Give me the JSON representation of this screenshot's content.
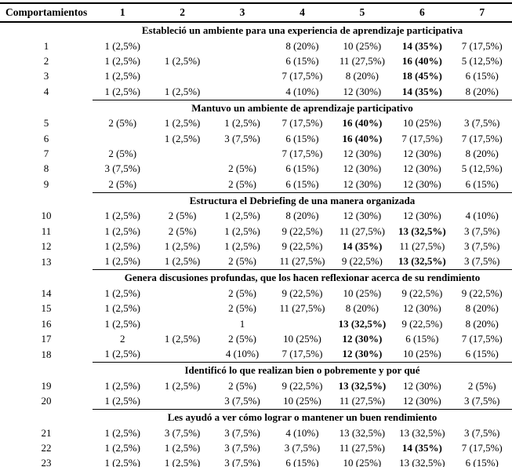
{
  "colors": {
    "text": "#000000",
    "background": "#ffffff",
    "rule": "#000000"
  },
  "table": {
    "header": {
      "label": "Comportamientos",
      "columns": [
        "1",
        "2",
        "3",
        "4",
        "5",
        "6",
        "7"
      ]
    },
    "sections": [
      {
        "title": "Estableció un ambiente para una experiencia de aprendizaje participativa",
        "rows": [
          {
            "id": "1",
            "cells": [
              {
                "t": "1 (2,5%)"
              },
              {
                "t": ""
              },
              {
                "t": ""
              },
              {
                "t": "8 (20%)"
              },
              {
                "t": "10 (25%)"
              },
              {
                "t": "14 (35%)",
                "b": true
              },
              {
                "t": "7 (17,5%)"
              }
            ]
          },
          {
            "id": "2",
            "cells": [
              {
                "t": "1 (2,5%)"
              },
              {
                "t": "1 (2,5%)"
              },
              {
                "t": ""
              },
              {
                "t": "6 (15%)"
              },
              {
                "t": "11 (27,5%)"
              },
              {
                "t": "16 (40%)",
                "b": true
              },
              {
                "t": "5 (12,5%)"
              }
            ]
          },
          {
            "id": "3",
            "cells": [
              {
                "t": "1 (2,5%)"
              },
              {
                "t": ""
              },
              {
                "t": ""
              },
              {
                "t": "7 (17,5%)"
              },
              {
                "t": "8 (20%)"
              },
              {
                "t": "18 (45%)",
                "b": true
              },
              {
                "t": "6 (15%)"
              }
            ]
          },
          {
            "id": "4",
            "cells": [
              {
                "t": "1 (2,5%)"
              },
              {
                "t": "1 (2,5%)"
              },
              {
                "t": ""
              },
              {
                "t": "4 (10%)"
              },
              {
                "t": "12 (30%)"
              },
              {
                "t": "14 (35%)",
                "b": true
              },
              {
                "t": "8 (20%)"
              }
            ]
          }
        ]
      },
      {
        "title": "Mantuvo un ambiente de aprendizaje participativo",
        "rows": [
          {
            "id": "5",
            "cells": [
              {
                "t": "2 (5%)"
              },
              {
                "t": "1 (2,5%)"
              },
              {
                "t": "1 (2,5%)"
              },
              {
                "t": "7 (17,5%)"
              },
              {
                "t": "16 (40%)",
                "b": true
              },
              {
                "t": "10 (25%)"
              },
              {
                "t": "3 (7,5%)"
              }
            ]
          },
          {
            "id": "6",
            "cells": [
              {
                "t": ""
              },
              {
                "t": "1 (2,5%)"
              },
              {
                "t": "3 (7,5%)"
              },
              {
                "t": "6 (15%)"
              },
              {
                "t": "16 (40%)",
                "b": true
              },
              {
                "t": "7 (17,5%)"
              },
              {
                "t": "7 (17,5%)"
              }
            ]
          },
          {
            "id": "7",
            "cells": [
              {
                "t": "2 (5%)"
              },
              {
                "t": ""
              },
              {
                "t": ""
              },
              {
                "t": "7 (17,5%)"
              },
              {
                "t": "12 (30%)"
              },
              {
                "t": "12 (30%)"
              },
              {
                "t": "8 (20%)"
              }
            ]
          },
          {
            "id": "8",
            "cells": [
              {
                "t": "3 (7,5%)"
              },
              {
                "t": ""
              },
              {
                "t": "2 (5%)"
              },
              {
                "t": "6 (15%)"
              },
              {
                "t": "12 (30%)"
              },
              {
                "t": "12 (30%)"
              },
              {
                "t": "5 (12,5%)"
              }
            ]
          },
          {
            "id": "9",
            "cells": [
              {
                "t": "2 (5%)"
              },
              {
                "t": ""
              },
              {
                "t": "2 (5%)"
              },
              {
                "t": "6 (15%)"
              },
              {
                "t": "12 (30%)"
              },
              {
                "t": "12 (30%)"
              },
              {
                "t": "6 (15%)"
              }
            ]
          }
        ]
      },
      {
        "title": "Estructura el Debriefing de una manera organizada",
        "rows": [
          {
            "id": "10",
            "cells": [
              {
                "t": "1 (2,5%)"
              },
              {
                "t": "2 (5%)"
              },
              {
                "t": "1 (2,5%)"
              },
              {
                "t": "8 (20%)"
              },
              {
                "t": "12 (30%)"
              },
              {
                "t": "12 (30%)"
              },
              {
                "t": "4 (10%)"
              }
            ]
          },
          {
            "id": "11",
            "cells": [
              {
                "t": "1 (2,5%)"
              },
              {
                "t": "2 (5%)"
              },
              {
                "t": "1 (2,5%)"
              },
              {
                "t": "9 (22,5%)"
              },
              {
                "t": "11 (27,5%)"
              },
              {
                "t": "13 (32,5%)",
                "b": true
              },
              {
                "t": "3 (7,5%)"
              }
            ]
          },
          {
            "id": "12",
            "cells": [
              {
                "t": "1 (2,5%)"
              },
              {
                "t": "1 (2,5%)"
              },
              {
                "t": "1 (2,5%)"
              },
              {
                "t": "9 (22,5%)"
              },
              {
                "t": "14 (35%)",
                "b": true
              },
              {
                "t": "11 (27,5%)"
              },
              {
                "t": "3 (7,5%)"
              }
            ]
          },
          {
            "id": "13",
            "cells": [
              {
                "t": "1 (2,5%)"
              },
              {
                "t": "1 (2,5%)"
              },
              {
                "t": "2 (5%)"
              },
              {
                "t": "11 (27,5%)"
              },
              {
                "t": "9 (22,5%)"
              },
              {
                "t": "13 (32,5%)",
                "b": true
              },
              {
                "t": "3 (7,5%)"
              }
            ]
          }
        ]
      },
      {
        "title": "Genera discusiones profundas, que los hacen reflexionar acerca de su rendimiento",
        "rows": [
          {
            "id": "14",
            "cells": [
              {
                "t": "1 (2,5%)"
              },
              {
                "t": ""
              },
              {
                "t": "2 (5%)"
              },
              {
                "t": "9 (22,5%)"
              },
              {
                "t": "10 (25%)"
              },
              {
                "t": "9 (22,5%)"
              },
              {
                "t": "9 (22,5%)"
              }
            ]
          },
          {
            "id": "15",
            "cells": [
              {
                "t": "1 (2,5%)"
              },
              {
                "t": ""
              },
              {
                "t": "2 (5%)"
              },
              {
                "t": "11 (27,5%)"
              },
              {
                "t": "8 (20%)"
              },
              {
                "t": "12 (30%)"
              },
              {
                "t": "8 (20%)"
              }
            ]
          },
          {
            "id": "16",
            "cells": [
              {
                "t": "1 (2,5%)"
              },
              {
                "t": ""
              },
              {
                "t": "1"
              },
              {
                "t": ""
              },
              {
                "t": "13 (32,5%)",
                "b": true
              },
              {
                "t": "9 (22,5%)"
              },
              {
                "t": "8 (20%)"
              }
            ]
          },
          {
            "id": "17",
            "cells": [
              {
                "t": "2"
              },
              {
                "t": "1 (2,5%)"
              },
              {
                "t": "2 (5%)"
              },
              {
                "t": "10 (25%)"
              },
              {
                "t": "12 (30%)",
                "b": true
              },
              {
                "t": "6 (15%)"
              },
              {
                "t": "7 (17,5%)"
              }
            ]
          },
          {
            "id": "18",
            "cells": [
              {
                "t": "1 (2,5%)"
              },
              {
                "t": ""
              },
              {
                "t": "4 (10%)"
              },
              {
                "t": "7 (17,5%)"
              },
              {
                "t": "12 (30%)",
                "b": true
              },
              {
                "t": "10 (25%)"
              },
              {
                "t": "6 (15%)"
              }
            ]
          }
        ]
      },
      {
        "title": "Identificó lo que realizan bien o pobremente y por qué",
        "rows": [
          {
            "id": "19",
            "cells": [
              {
                "t": "1 (2,5%)"
              },
              {
                "t": "1 (2,5%)"
              },
              {
                "t": "2 (5%)"
              },
              {
                "t": "9 (22,5%)"
              },
              {
                "t": "13 (32,5%)",
                "b": true
              },
              {
                "t": "12 (30%)"
              },
              {
                "t": "2 (5%)"
              }
            ]
          },
          {
            "id": "20",
            "cells": [
              {
                "t": "1 (2,5%)"
              },
              {
                "t": ""
              },
              {
                "t": "3 (7,5%)"
              },
              {
                "t": "10 (25%)"
              },
              {
                "t": "11 (27,5%)"
              },
              {
                "t": "12 (30%)"
              },
              {
                "t": "3 (7,5%)"
              }
            ]
          }
        ]
      },
      {
        "title": "Les ayudó a ver cómo lograr o mantener un buen rendimiento",
        "rows": [
          {
            "id": "21",
            "cells": [
              {
                "t": "1 (2,5%)"
              },
              {
                "t": "3 (7,5%)"
              },
              {
                "t": "3 (7,5%)"
              },
              {
                "t": "4 (10%)"
              },
              {
                "t": "13 (32,5%)"
              },
              {
                "t": "13 (32,5%)"
              },
              {
                "t": "3 (7,5%)"
              }
            ]
          },
          {
            "id": "22",
            "cells": [
              {
                "t": "1 (2,5%)"
              },
              {
                "t": "1 (2,5%)"
              },
              {
                "t": "3 (7,5%)"
              },
              {
                "t": "3 (7,5%)"
              },
              {
                "t": "11 (27,5%)"
              },
              {
                "t": "14 (35%)",
                "b": true
              },
              {
                "t": "7 (17,5%)"
              }
            ]
          },
          {
            "id": "23",
            "cells": [
              {
                "t": "1 (2,5%)"
              },
              {
                "t": "1 (2,5%)"
              },
              {
                "t": "3 (7,5%)"
              },
              {
                "t": "6 (15%)"
              },
              {
                "t": "10 (25%)"
              },
              {
                "t": "13 (32,5%)"
              },
              {
                "t": "6 (15%)"
              }
            ]
          }
        ]
      }
    ]
  }
}
